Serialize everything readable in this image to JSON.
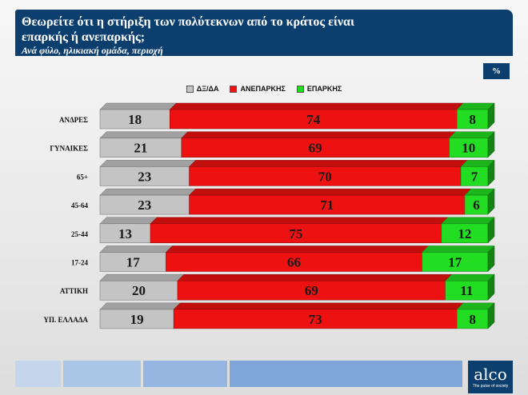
{
  "header": {
    "title": "Θεωρείτε ότι η στήριξη των πολύτεκνων από το κράτος είναι επαρκής ή ανεπαρκής;",
    "subtitle": "Ανά φύλο, ηλικιακή ομάδα, περιοχή"
  },
  "unit": "%",
  "legend": [
    "ΔΞ/ΔΑ",
    "ΑΝΕΠΑΡΚΗΣ",
    "ΕΠΑΡΚΗΣ"
  ],
  "logo": {
    "brand": "alco",
    "tagline": "The pulse of society"
  },
  "colors": {
    "dk": "#c4c4c4",
    "insufficient": "#ee1111",
    "sufficient": "#22dd22",
    "header": "#0d3f6e"
  },
  "chart_data": {
    "type": "bar",
    "stacked": true,
    "orientation": "horizontal",
    "title": "Θεωρείτε ότι η στήριξη των πολύτεκνων από το κράτος είναι επαρκής ή ανεπαρκής;",
    "categories": [
      "ΑΝΔΡΕΣ",
      "ΓΥΝΑΙΚΕΣ",
      "65+",
      "45-64",
      "25-44",
      "17-24",
      "ΑΤΤΙΚΗ",
      "ΥΠ. ΕΛΛΑΔΑ"
    ],
    "series": [
      {
        "name": "ΔΞ/ΔΑ",
        "values": [
          18,
          21,
          23,
          23,
          13,
          17,
          20,
          19
        ]
      },
      {
        "name": "ΑΝΕΠΑΡΚΗΣ",
        "values": [
          74,
          69,
          70,
          71,
          75,
          66,
          69,
          73
        ]
      },
      {
        "name": "ΕΠΑΡΚΗΣ",
        "values": [
          8,
          10,
          7,
          6,
          12,
          17,
          11,
          8
        ]
      }
    ],
    "legend_position": "top-center"
  }
}
